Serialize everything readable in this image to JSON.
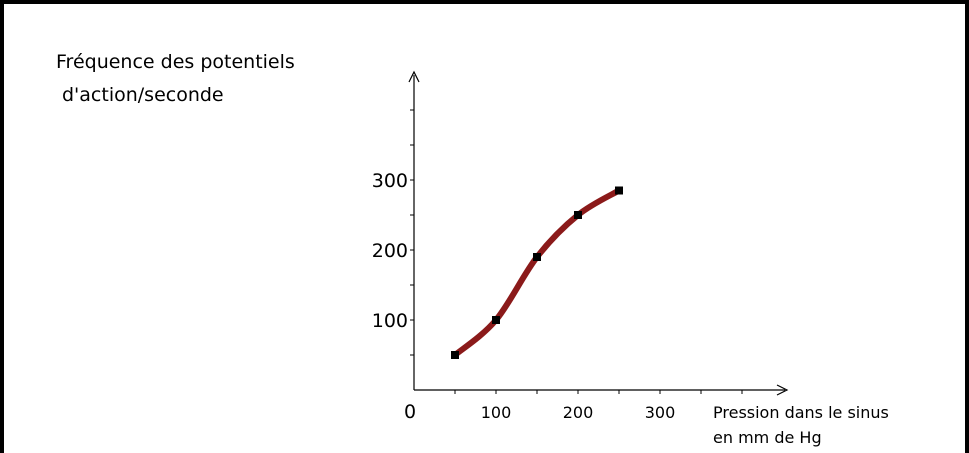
{
  "chart_data": {
    "type": "line",
    "title": "",
    "ylabel_line1": "Fréquence des potentiels",
    "ylabel_line2": "d'action/seconde",
    "xlabel_line1": "Pression dans le sinus",
    "xlabel_line2": "en mm de Hg",
    "xlim": [
      0,
      450
    ],
    "ylim": [
      0,
      440
    ],
    "x_ticks": [
      {
        "value": 0,
        "label": "0"
      },
      {
        "value": 100,
        "label": "100"
      },
      {
        "value": 200,
        "label": "200"
      },
      {
        "value": 300,
        "label": "300"
      }
    ],
    "y_ticks": [
      {
        "value": 100,
        "label": "100"
      },
      {
        "value": 200,
        "label": "200"
      },
      {
        "value": 300,
        "label": "300"
      }
    ],
    "series": [
      {
        "color": "#8b1a1a",
        "points": [
          {
            "x": 50,
            "y": 50
          },
          {
            "x": 100,
            "y": 100
          },
          {
            "x": 150,
            "y": 190
          },
          {
            "x": 200,
            "y": 250
          },
          {
            "x": 250,
            "y": 285
          }
        ]
      }
    ],
    "marker_color": "#000000",
    "grid": false
  }
}
